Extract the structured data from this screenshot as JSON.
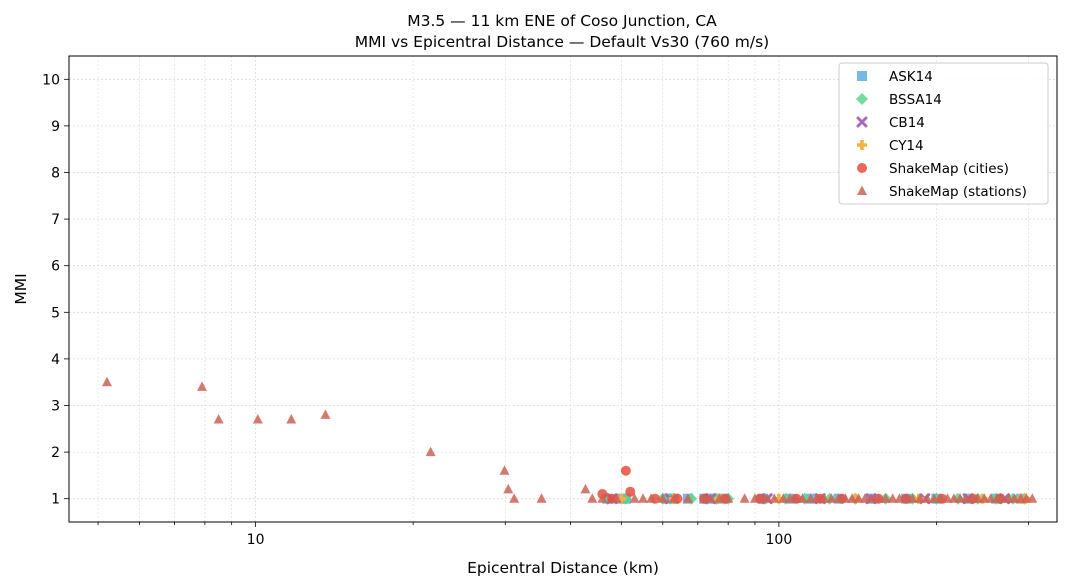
{
  "chart_data": {
    "type": "scatter",
    "title": "M3.5 — 11 km ENE of Coso Junction, CA",
    "subtitle": "MMI vs Epicentral Distance — Default Vs30 (760 m/s)",
    "xlabel": "Epicentral Distance (km)",
    "ylabel": "MMI",
    "xscale": "log",
    "xlim": [
      4.4,
      340
    ],
    "ylim": [
      0.5,
      10.5
    ],
    "xticks": [
      10,
      100
    ],
    "xtick_labels": [
      "10",
      "100"
    ],
    "yticks": [
      1,
      2,
      3,
      4,
      5,
      6,
      7,
      8,
      9,
      10
    ],
    "ytick_labels": [
      "1",
      "2",
      "3",
      "4",
      "5",
      "6",
      "7",
      "8",
      "9",
      "10"
    ],
    "grid": true,
    "legend_position": "top-right",
    "series": [
      {
        "name": "ASK14",
        "marker": "square",
        "color": "#5dade2",
        "points": [
          [
            47,
            1.0
          ],
          [
            50,
            1.0
          ],
          [
            51,
            1.0
          ],
          [
            61,
            1.0
          ],
          [
            63,
            1.0
          ],
          [
            67,
            1.0
          ],
          [
            72,
            1.0
          ],
          [
            75,
            1.0
          ],
          [
            78,
            1.0
          ],
          [
            93,
            1.0
          ],
          [
            105,
            1.0
          ],
          [
            115,
            1.0
          ],
          [
            130,
            1.0
          ],
          [
            150,
            1.0
          ],
          [
            175,
            1.0
          ],
          [
            200,
            1.0
          ],
          [
            230,
            1.0
          ],
          [
            260,
            1.0
          ],
          [
            290,
            1.0
          ]
        ]
      },
      {
        "name": "BSSA14",
        "marker": "diamond",
        "color": "#58d68d",
        "points": [
          [
            47,
            1.0
          ],
          [
            51,
            1.0
          ],
          [
            60,
            1.0
          ],
          [
            62,
            1.0
          ],
          [
            68,
            1.0
          ],
          [
            73,
            1.0
          ],
          [
            76,
            1.0
          ],
          [
            80,
            1.0
          ],
          [
            94,
            1.0
          ],
          [
            103,
            1.0
          ],
          [
            112,
            1.0
          ],
          [
            125,
            1.0
          ],
          [
            140,
            1.0
          ],
          [
            160,
            1.0
          ],
          [
            180,
            1.0
          ],
          [
            200,
            1.0
          ],
          [
            220,
            1.0
          ],
          [
            240,
            1.0
          ],
          [
            260,
            1.0
          ],
          [
            280,
            1.0
          ],
          [
            295,
            1.0
          ]
        ]
      },
      {
        "name": "CB14",
        "marker": "x",
        "color": "#a569bd",
        "points": [
          [
            48,
            1.0
          ],
          [
            62,
            1.0
          ],
          [
            74,
            1.0
          ],
          [
            95,
            1.0
          ],
          [
            120,
            1.0
          ],
          [
            150,
            1.0
          ],
          [
            190,
            1.0
          ],
          [
            230,
            1.0
          ],
          [
            270,
            1.0
          ]
        ]
      },
      {
        "name": "CY14",
        "marker": "plus",
        "color": "#f5b041",
        "points": [
          [
            50,
            1.0
          ],
          [
            63,
            1.0
          ],
          [
            77,
            1.0
          ],
          [
            100,
            1.0
          ],
          [
            140,
            1.0
          ],
          [
            185,
            1.0
          ],
          [
            245,
            1.0
          ],
          [
            290,
            1.0
          ],
          [
            296,
            1.0
          ]
        ]
      },
      {
        "name": "ShakeMap (cities)",
        "marker": "circle",
        "color": "#e74c3c",
        "points": [
          [
            46,
            1.1
          ],
          [
            48,
            1.0
          ],
          [
            51,
            1.6
          ],
          [
            52,
            1.15
          ],
          [
            58,
            1.0
          ],
          [
            64,
            1.0
          ],
          [
            72,
            1.0
          ],
          [
            79,
            1.0
          ],
          [
            92,
            1.0
          ],
          [
            108,
            1.0
          ],
          [
            120,
            1.0
          ],
          [
            132,
            1.0
          ],
          [
            155,
            1.0
          ],
          [
            175,
            1.0
          ],
          [
            205,
            1.0
          ],
          [
            235,
            1.0
          ],
          [
            265,
            1.0
          ]
        ]
      },
      {
        "name": "ShakeMap (stations)",
        "marker": "triangle",
        "color": "#cd6155",
        "points": [
          [
            5.2,
            3.5
          ],
          [
            7.9,
            3.4
          ],
          [
            8.5,
            2.7
          ],
          [
            10.1,
            2.7
          ],
          [
            11.7,
            2.7
          ],
          [
            13.6,
            2.8
          ],
          [
            21.6,
            2.0
          ],
          [
            29.9,
            1.6
          ],
          [
            30.4,
            1.2
          ],
          [
            31.2,
            1.0
          ],
          [
            35.2,
            1.0
          ],
          [
            42.7,
            1.2
          ],
          [
            44,
            1.0
          ],
          [
            46,
            1.0
          ],
          [
            49,
            1.0
          ],
          [
            53,
            1.0
          ],
          [
            55,
            1.0
          ],
          [
            57,
            1.0
          ],
          [
            60,
            1.0
          ],
          [
            63,
            1.0
          ],
          [
            67,
            1.0
          ],
          [
            72,
            1.0
          ],
          [
            74,
            1.0
          ],
          [
            77,
            1.0
          ],
          [
            80,
            1.0
          ],
          [
            86,
            1.0
          ],
          [
            90,
            1.0
          ],
          [
            95,
            1.0
          ],
          [
            98,
            1.0
          ],
          [
            102,
            1.0
          ],
          [
            105,
            1.0
          ],
          [
            108,
            1.0
          ],
          [
            111,
            1.0
          ],
          [
            115,
            1.0
          ],
          [
            118,
            1.0
          ],
          [
            122,
            1.0
          ],
          [
            126,
            1.0
          ],
          [
            130,
            1.0
          ],
          [
            134,
            1.0
          ],
          [
            138,
            1.0
          ],
          [
            142,
            1.0
          ],
          [
            146,
            1.0
          ],
          [
            150,
            1.0
          ],
          [
            155,
            1.0
          ],
          [
            160,
            1.0
          ],
          [
            165,
            1.0
          ],
          [
            170,
            1.0
          ],
          [
            175,
            1.0
          ],
          [
            180,
            1.0
          ],
          [
            186,
            1.0
          ],
          [
            192,
            1.0
          ],
          [
            198,
            1.0
          ],
          [
            204,
            1.0
          ],
          [
            210,
            1.0
          ],
          [
            216,
            1.0
          ],
          [
            222,
            1.0
          ],
          [
            228,
            1.0
          ],
          [
            234,
            1.0
          ],
          [
            240,
            1.0
          ],
          [
            247,
            1.0
          ],
          [
            254,
            1.0
          ],
          [
            261,
            1.0
          ],
          [
            268,
            1.0
          ],
          [
            275,
            1.0
          ],
          [
            282,
            1.0
          ],
          [
            290,
            1.0
          ],
          [
            297,
            1.0
          ],
          [
            305,
            1.0
          ]
        ]
      }
    ]
  }
}
